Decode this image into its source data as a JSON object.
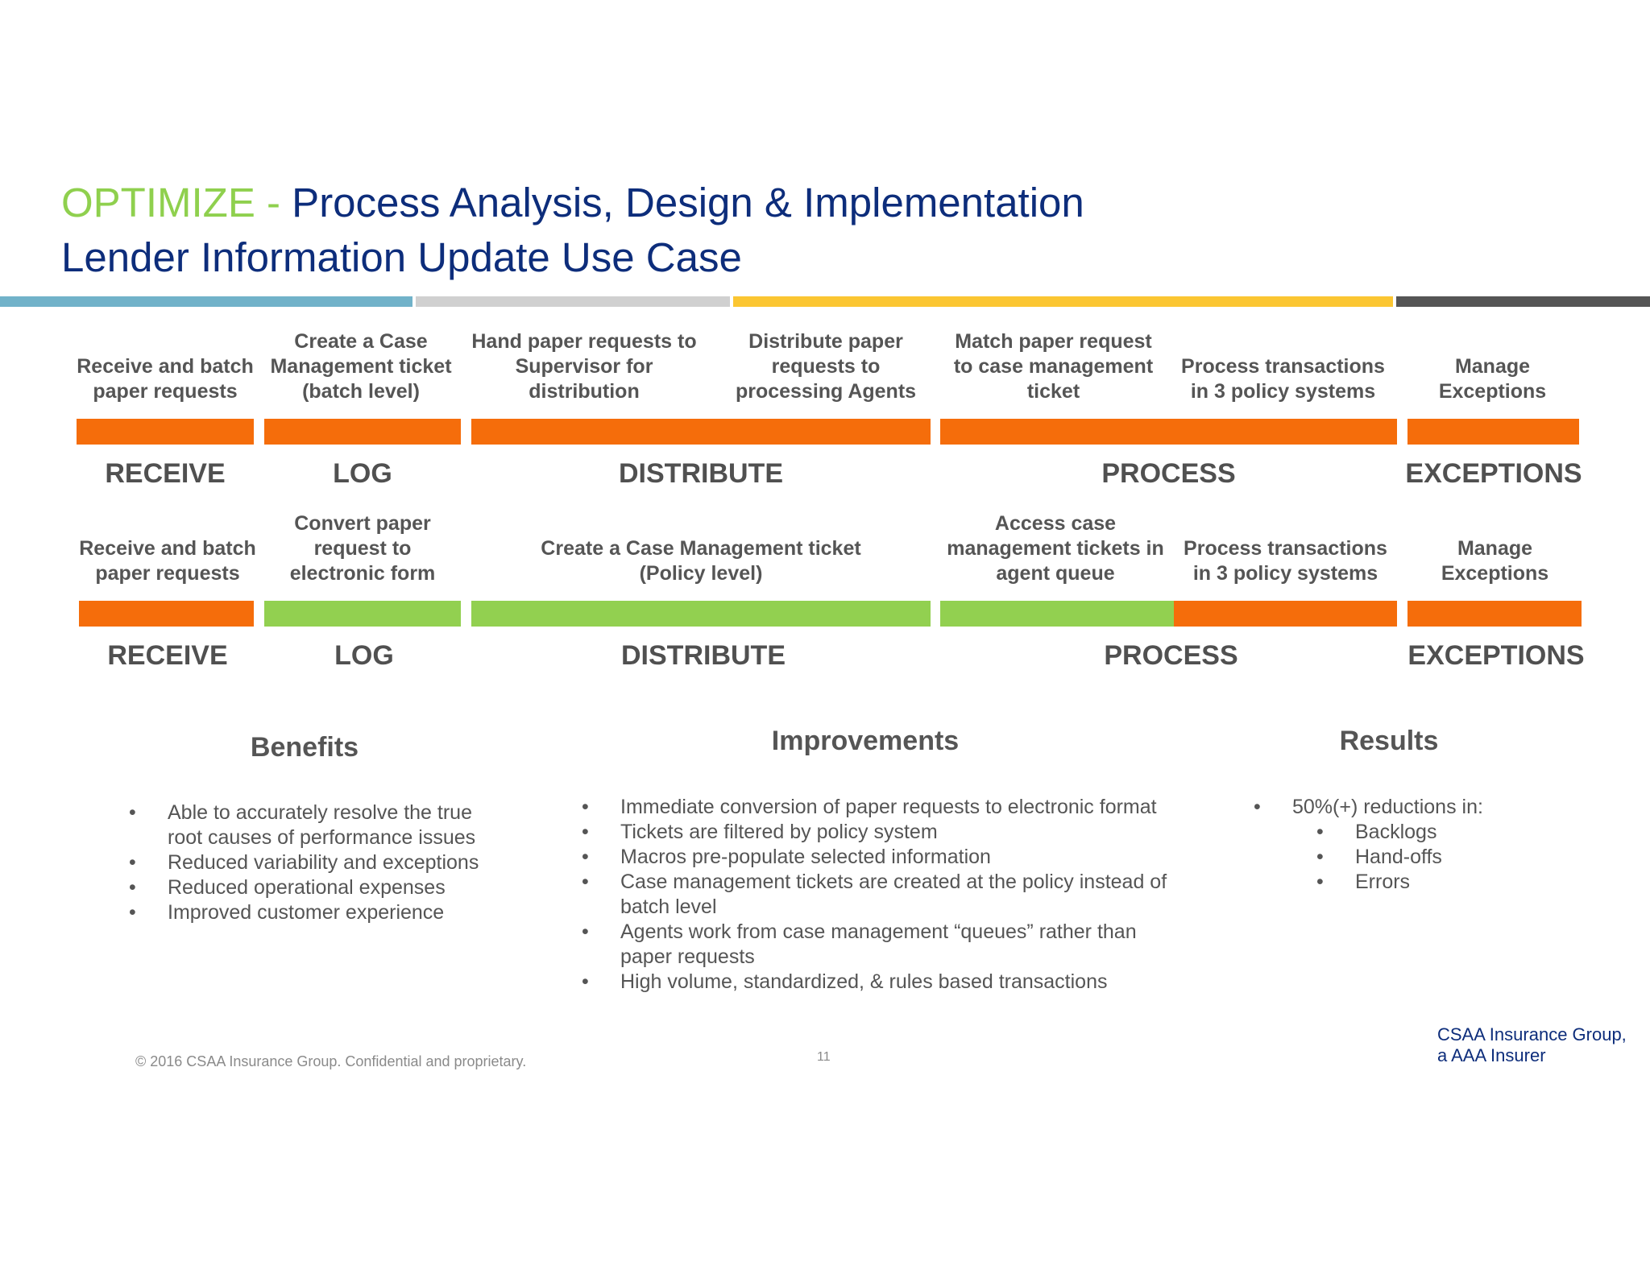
{
  "title": {
    "accent": "OPTIMIZE",
    "separator": " - ",
    "main": "Process Analysis, Design & Implementation",
    "subtitle": "Lender Information Update Use Case"
  },
  "colors": {
    "stripe_blue": "#71b2c9",
    "stripe_gray": "#d0d0d0",
    "stripe_yellow": "#fbc632",
    "stripe_dark": "#555555",
    "bar_orange": "#f56d0b",
    "bar_green": "#92d050",
    "title_navy": "#0d2d7b",
    "title_green": "#8fd04e"
  },
  "current_flow": {
    "steps": [
      "Receive and batch paper requests",
      "Create a Case Management ticket (batch level)",
      "Hand paper requests to Supervisor for distribution",
      "Distribute paper requests to processing Agents",
      "Match paper request to case management ticket",
      "Process transactions in 3 policy systems",
      "Manage Exceptions"
    ],
    "phases": [
      "RECEIVE",
      "LOG",
      "DISTRIBUTE",
      "PROCESS",
      "EXCEPTIONS"
    ]
  },
  "future_flow": {
    "steps": [
      "Receive and batch paper requests",
      "Convert paper request to electronic form",
      "Create a Case Management ticket (Policy level)",
      "Access case management tickets in agent queue",
      "Process transactions in 3 policy systems",
      "Manage Exceptions"
    ],
    "phases": [
      "RECEIVE",
      "LOG",
      "DISTRIBUTE",
      "PROCESS",
      "EXCEPTIONS"
    ]
  },
  "benefits": {
    "heading": "Benefits",
    "items": [
      "Able to accurately resolve the true root causes of performance issues",
      "Reduced variability and exceptions",
      "Reduced operational expenses",
      "Improved customer experience"
    ]
  },
  "improvements": {
    "heading": "Improvements",
    "items": [
      "Immediate conversion of paper requests to electronic format",
      "Tickets are filtered by policy system",
      "Macros pre-populate selected information",
      "Case management tickets are created at the policy instead of batch level",
      "Agents work from case management “queues” rather than paper requests",
      "High volume, standardized, & rules based transactions"
    ]
  },
  "results": {
    "heading": "Results",
    "item": "50%(+) reductions in:",
    "sub_items": [
      "Backlogs",
      "Hand-offs",
      "Errors"
    ]
  },
  "footer": {
    "copyright": "© 2016 CSAA Insurance Group. Confidential and proprietary.",
    "page_number": "11",
    "brand_line1": "CSAA Insurance Group,",
    "brand_line2": "a AAA Insurer"
  }
}
